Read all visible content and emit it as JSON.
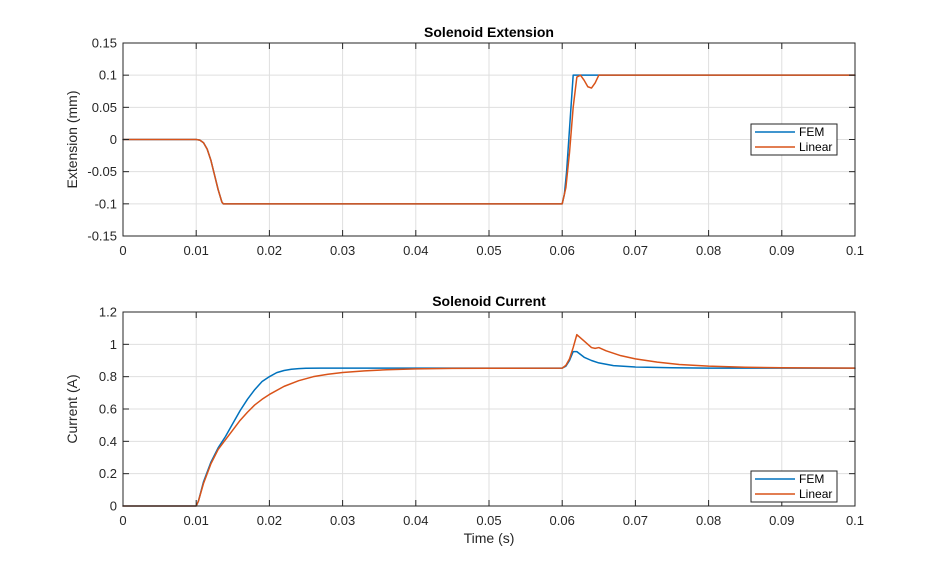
{
  "chart_data": [
    {
      "type": "line",
      "title": "Solenoid Extension",
      "xlabel": "",
      "ylabel": "Extension (mm)",
      "xlim": [
        0,
        0.1
      ],
      "ylim": [
        -0.15,
        0.15
      ],
      "xticks": [
        0,
        0.01,
        0.02,
        0.03,
        0.04,
        0.05,
        0.06,
        0.07,
        0.08,
        0.09,
        0.1
      ],
      "xtick_labels": [
        "0",
        "0.01",
        "0.02",
        "0.03",
        "0.04",
        "0.05",
        "0.06",
        "0.07",
        "0.08",
        "0.09",
        "0.1"
      ],
      "yticks": [
        -0.15,
        -0.1,
        -0.05,
        0,
        0.05,
        0.1,
        0.15
      ],
      "ytick_labels": [
        "-0.15",
        "-0.1",
        "-0.05",
        "0",
        "0.05",
        "0.1",
        "0.15"
      ],
      "grid": true,
      "legend": "right",
      "series": [
        {
          "name": "FEM",
          "color": "#0072BD",
          "x": [
            0,
            0.01,
            0.0105,
            0.011,
            0.0115,
            0.012,
            0.0125,
            0.013,
            0.0135,
            0.0137,
            0.06,
            0.0603,
            0.0606,
            0.0609,
            0.0612,
            0.0615,
            0.065,
            0.1
          ],
          "y": [
            0,
            0,
            -0.001,
            -0.005,
            -0.015,
            -0.032,
            -0.055,
            -0.078,
            -0.097,
            -0.1,
            -0.1,
            -0.085,
            -0.05,
            0.0,
            0.05,
            0.1,
            0.1,
            0.1
          ]
        },
        {
          "name": "Linear",
          "color": "#D95319",
          "x": [
            0,
            0.01,
            0.0105,
            0.011,
            0.0115,
            0.012,
            0.0125,
            0.013,
            0.0135,
            0.0137,
            0.06,
            0.0605,
            0.061,
            0.0615,
            0.062,
            0.0625,
            0.063,
            0.0635,
            0.064,
            0.0645,
            0.065,
            0.1
          ],
          "y": [
            0,
            0,
            -0.001,
            -0.005,
            -0.015,
            -0.032,
            -0.055,
            -0.078,
            -0.097,
            -0.1,
            -0.1,
            -0.075,
            -0.02,
            0.05,
            0.097,
            0.1,
            0.092,
            0.082,
            0.08,
            0.088,
            0.1,
            0.1
          ]
        }
      ]
    },
    {
      "type": "line",
      "title": "Solenoid Current",
      "xlabel": "Time (s)",
      "ylabel": "Current (A)",
      "xlim": [
        0,
        0.1
      ],
      "ylim": [
        0,
        1.2
      ],
      "xticks": [
        0,
        0.01,
        0.02,
        0.03,
        0.04,
        0.05,
        0.06,
        0.07,
        0.08,
        0.09,
        0.1
      ],
      "xtick_labels": [
        "0",
        "0.01",
        "0.02",
        "0.03",
        "0.04",
        "0.05",
        "0.06",
        "0.07",
        "0.08",
        "0.09",
        "0.1"
      ],
      "yticks": [
        0,
        0.2,
        0.4,
        0.6,
        0.8,
        1,
        1.2
      ],
      "ytick_labels": [
        "0",
        "0.2",
        "0.4",
        "0.6",
        "0.8",
        "1",
        "1.2"
      ],
      "grid": true,
      "legend": "bottom-right",
      "series": [
        {
          "name": "FEM",
          "color": "#0072BD",
          "x": [
            0,
            0.01,
            0.0103,
            0.011,
            0.012,
            0.013,
            0.014,
            0.015,
            0.016,
            0.017,
            0.018,
            0.019,
            0.02,
            0.021,
            0.022,
            0.023,
            0.024,
            0.025,
            0.027,
            0.03,
            0.035,
            0.04,
            0.05,
            0.06,
            0.0605,
            0.061,
            0.0615,
            0.062,
            0.063,
            0.064,
            0.065,
            0.067,
            0.07,
            0.075,
            0.08,
            0.09,
            0.1
          ],
          "y": [
            0,
            0,
            0.03,
            0.15,
            0.27,
            0.36,
            0.43,
            0.51,
            0.59,
            0.66,
            0.72,
            0.77,
            0.8,
            0.825,
            0.838,
            0.846,
            0.85,
            0.852,
            0.853,
            0.853,
            0.853,
            0.853,
            0.853,
            0.853,
            0.865,
            0.9,
            0.955,
            0.955,
            0.92,
            0.9,
            0.885,
            0.868,
            0.86,
            0.855,
            0.853,
            0.853,
            0.853
          ]
        },
        {
          "name": "Linear",
          "color": "#D95319",
          "x": [
            0,
            0.01,
            0.0103,
            0.011,
            0.012,
            0.013,
            0.014,
            0.015,
            0.016,
            0.017,
            0.018,
            0.019,
            0.02,
            0.022,
            0.024,
            0.026,
            0.028,
            0.03,
            0.033,
            0.036,
            0.04,
            0.045,
            0.05,
            0.06,
            0.0605,
            0.061,
            0.0615,
            0.062,
            0.063,
            0.064,
            0.0645,
            0.065,
            0.066,
            0.068,
            0.07,
            0.073,
            0.076,
            0.08,
            0.085,
            0.09,
            0.1
          ],
          "y": [
            0,
            0,
            0.03,
            0.14,
            0.26,
            0.35,
            0.41,
            0.47,
            0.53,
            0.58,
            0.625,
            0.66,
            0.69,
            0.74,
            0.775,
            0.8,
            0.815,
            0.826,
            0.836,
            0.843,
            0.848,
            0.851,
            0.852,
            0.853,
            0.87,
            0.91,
            0.98,
            1.06,
            1.02,
            0.98,
            0.975,
            0.98,
            0.96,
            0.93,
            0.91,
            0.89,
            0.875,
            0.865,
            0.858,
            0.855,
            0.853
          ]
        }
      ]
    }
  ]
}
